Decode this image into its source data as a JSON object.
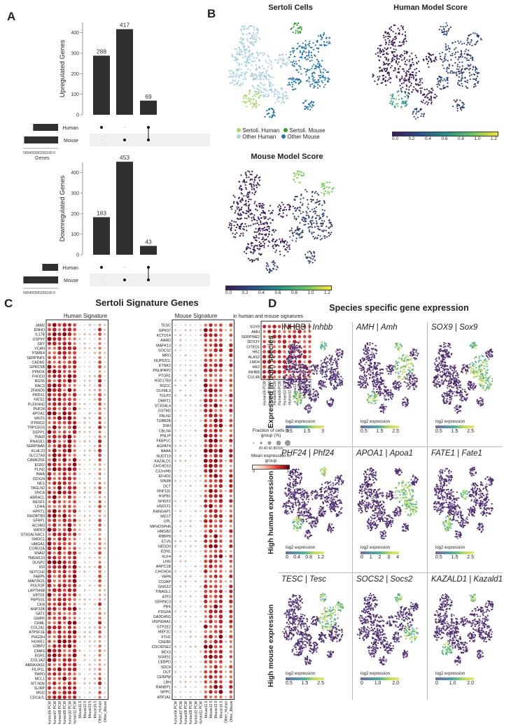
{
  "panelA": {
    "label": "A",
    "up": {
      "ylabel": "Upregulated Genes",
      "yticks": [
        "0",
        "100",
        "200",
        "300",
        "400"
      ],
      "bars": [
        288,
        417,
        69
      ],
      "bar_labels": [
        "288",
        "417",
        "69"
      ],
      "sets": [
        "Human",
        "Mouse"
      ],
      "xaxis_ticks": "500400300200100 0",
      "xlabel": "Genes"
    },
    "down": {
      "ylabel": "Downregulated Genes",
      "yticks": [
        "0",
        "100",
        "200",
        "300",
        "400"
      ],
      "bars": [
        183,
        453,
        43
      ],
      "bar_labels": [
        "183",
        "453",
        "43"
      ],
      "sets": [
        "Human",
        "Mouse"
      ],
      "xaxis_ticks": "500400300200100 0",
      "xlabel": "Genes"
    }
  },
  "panelB": {
    "label": "B",
    "t1": "Sertoli Cells",
    "t2": "Human Model Score",
    "t3": "Mouse Model Score",
    "legend": [
      "Sertoli. Human",
      "Sertoli. Mouse",
      "Other Human",
      "Other Mouse"
    ],
    "legend_colors": [
      "#a6d96a",
      "#2ca02c",
      "#a6cee3",
      "#1f78b4"
    ],
    "cbar_ticks": [
      "0.0",
      "0.2",
      "0.4",
      "0.6",
      "0.8",
      "1.0",
      "1.2"
    ]
  },
  "panelC": {
    "label": "C",
    "title": "Sertoli Signature Genes",
    "human_title": "Human Signature",
    "mouse_title": "Mouse Signature",
    "both_title": "In human and mouse signatures",
    "human_genes": [
      "JAM2",
      "ENHO",
      "IL17B",
      "USP9Y",
      "SRY",
      "VCAN",
      "PSME4",
      "SERPINF1",
      "CADM1",
      "GPRC5B",
      "PPM1K",
      "FHOD3",
      "RGS5",
      "RAC3",
      "ZFAND5",
      "PRDX1",
      "FATE1",
      "PLEKHH2",
      "PHF24",
      "APOA1",
      "WNT6",
      "ITPRID2",
      "TRPC5OS",
      "DEPP1",
      "TNNI3",
      "RNASE1",
      "SERPINA5",
      "KLHL23",
      "SLC27A3",
      "CAMK2N1",
      "EGR2",
      "PLIN2",
      "INHA",
      "DDX24",
      "NES",
      "TAGLN2",
      "SNCA",
      "ABRACL",
      "RESF1",
      "LDHA",
      "HPRT1",
      "RHOBTB3",
      "SFRP1",
      "ACSM3",
      "WIPF3",
      "ST6GALNAC1",
      "SMOC1",
      "HMGA1",
      "CORO2A",
      "SNAI2",
      "TMEM123",
      "DUSP2",
      "ID3",
      "NOTCH2",
      "FABP5",
      "MAP3K21",
      "POLR2F",
      "LAPTM4B",
      "UBTD1",
      "PAPSS1",
      "CKB",
      "ANP32B",
      "SAT1",
      "GMPR",
      "CHML",
      "COL2A1",
      "ATP5F1E",
      "PHGDH",
      "HUWE1",
      "G3BP2",
      "CMAS",
      "EGR1",
      "COL1A2",
      "ABRAXAS1",
      "FILIP1L",
      "TMPO",
      "MCL1",
      "MT-ND6",
      "SLIRP",
      "MSI2",
      "CDCA7L"
    ],
    "mouse_genes": [
      "TESC",
      "GPR37",
      "KCTD14",
      "AARD",
      "MAPK13",
      "SOCS2",
      "MRO",
      "NUP62CL",
      "ETNK2",
      "PNLIPRP2",
      "PTGR1",
      "HSD17B3",
      "RGCC",
      "OLFML3",
      "TULP2",
      "DMRT1",
      "ST3GAL4",
      "GSTM2",
      "FBLN2",
      "TUBB2B",
      "DHH",
      "CBLN4",
      "PNLIP",
      "FKBP1C",
      "AGPAT4",
      "NAAA",
      "NUDT19",
      "KAZALD1",
      "CHCHD10",
      "C12orf45",
      "EFHD2",
      "SIN3B",
      "DCT",
      "RNF181",
      "HSPB1",
      "SPINT2",
      "HS6ST1",
      "RANGAP1",
      "MEST",
      "UPL",
      "MPHOSPH6",
      "HMGB2",
      "RBBP8",
      "ETV5",
      "NEDD9",
      "EDN1",
      "KLF4",
      "LNG",
      "ARPC1B",
      "CHCHD4",
      "VAPA",
      "CD2AP",
      "GNG12",
      "TINAGL1",
      "ATF3",
      "SERINC3",
      "PBK",
      "PDGFA",
      "GADD45G",
      "HSP90AA1",
      "GTF2E2",
      "MEF2C",
      "FTH1",
      "CREB5",
      "CDC42SE2",
      "BEX3",
      "SGMS1",
      "CEBPD",
      "SDC4",
      "DUT",
      "CENPW",
      "LBH",
      "RANBP1",
      "NPPC",
      "ATP1A1"
    ],
    "both_genes": [
      "SOX9",
      "AMH",
      "SERPINE2",
      "DDX3Y",
      "CITED1",
      "HBZ",
      "ALAS2",
      "LMO4",
      "HK2",
      "INHBB",
      "CUL4B"
    ],
    "groups": [
      "Human06 PCW",
      "Human07 PCW",
      "Human08 PCW",
      "Human09 PCW",
      "Human10 PCW",
      "Human11 PCW",
      "Mouse11.5",
      "Mouse12.5",
      "Mouse13.5",
      "Mouse16.5",
      "Other_Human",
      "Other_Mouse"
    ],
    "size_legend_title": "Fraction of cells in group (%)",
    "size_ticks": "20 40 60 80100",
    "color_legend_title": "Mean expression in group",
    "color_ticks": [
      "0",
      "1"
    ]
  },
  "panelD": {
    "label": "D",
    "title": "Species specific gene expression",
    "row_labels": [
      "Expressed in both species",
      "High human expression",
      "High mouse expression"
    ],
    "cells": [
      {
        "h": "INHBB",
        "m": "Inhbb",
        "hi": false,
        "ticks": [
          "0.5",
          "1.5",
          "3"
        ]
      },
      {
        "h": "AMH",
        "m": "Amh",
        "hi": true,
        "ticks": [
          "0.5",
          "1.5",
          "2.5"
        ]
      },
      {
        "h": "SOX9",
        "m": "Sox9",
        "hi": true,
        "ticks": [
          "0.5",
          "1.5",
          "2.5"
        ]
      },
      {
        "h": "PHF24",
        "m": "Phf24",
        "hi": true,
        "ticks": [
          "0",
          "0.4",
          "0.8",
          "1.2"
        ]
      },
      {
        "h": "APOA1",
        "m": "Apoa1",
        "hi": true,
        "ticks": [
          "0",
          "1",
          "2",
          "3",
          "4"
        ]
      },
      {
        "h": "FATE1",
        "m": "Fate1",
        "hi": true,
        "ticks": [
          "0.5",
          "1.5",
          "2.5"
        ]
      },
      {
        "h": "TESC",
        "m": "Tesc",
        "hi": true,
        "ticks": [
          "0.5",
          "1.5",
          "2.5"
        ]
      },
      {
        "h": "SOCS2",
        "m": "Socs2",
        "hi": true,
        "ticks": [
          "0",
          "1.0",
          "2.0"
        ]
      },
      {
        "h": "KAZALD1",
        "m": "Kazald1",
        "hi": true,
        "ticks": [
          "0",
          "1.0",
          "2.0"
        ]
      }
    ],
    "sep": "|",
    "cbar_label": "log2 expression"
  }
}
